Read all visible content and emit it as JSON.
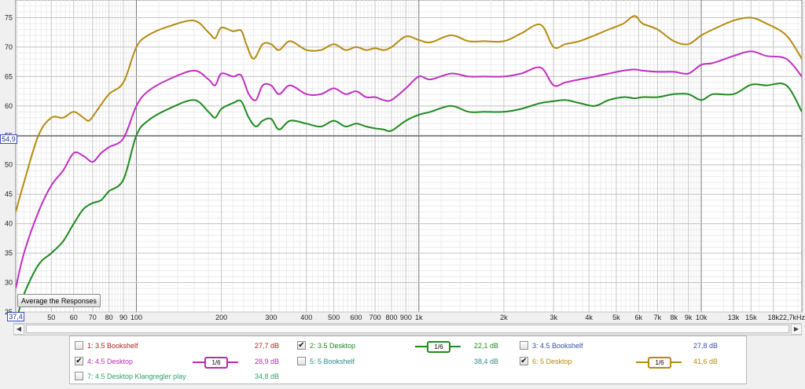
{
  "chart_data": {
    "type": "line",
    "title": "",
    "xlabel": "",
    "ylabel": "",
    "xscale": "log",
    "xlim": [
      37.4,
      22700
    ],
    "ylim": [
      25,
      78
    ],
    "grid": true,
    "y_ticks": [
      "25",
      "30",
      "35",
      "40",
      "45",
      "50",
      "55",
      "60",
      "65",
      "70",
      "75"
    ],
    "x_ticks": [
      {
        "v": 50,
        "t": "50"
      },
      {
        "v": 60,
        "t": "60"
      },
      {
        "v": 70,
        "t": "70"
      },
      {
        "v": 80,
        "t": "80"
      },
      {
        "v": 90,
        "t": "90"
      },
      {
        "v": 100,
        "t": "100"
      },
      {
        "v": 200,
        "t": "200"
      },
      {
        "v": 300,
        "t": "300"
      },
      {
        "v": 400,
        "t": "400"
      },
      {
        "v": 500,
        "t": "500"
      },
      {
        "v": 600,
        "t": "600"
      },
      {
        "v": 700,
        "t": "700"
      },
      {
        "v": 800,
        "t": "800"
      },
      {
        "v": 900,
        "t": "900"
      },
      {
        "v": 1000,
        "t": "1k"
      },
      {
        "v": 2000,
        "t": "2k"
      },
      {
        "v": 3000,
        "t": "3k"
      },
      {
        "v": 4000,
        "t": "4k"
      },
      {
        "v": 5000,
        "t": "5k"
      },
      {
        "v": 6000,
        "t": "6k"
      },
      {
        "v": 7000,
        "t": "7k"
      },
      {
        "v": 8000,
        "t": "8k"
      },
      {
        "v": 9000,
        "t": "9k"
      },
      {
        "v": 10000,
        "t": "10k"
      },
      {
        "v": 13000,
        "t": "13k"
      },
      {
        "v": 15000,
        "t": "15k"
      },
      {
        "v": 18000,
        "t": "18k"
      }
    ],
    "x_start_label": "37,4",
    "x_end_label": "22,7kHz",
    "y_start_label": "",
    "marker_y_value": 54.9,
    "marker_y_label": "54,9",
    "series": [
      {
        "name": "6: 5 Desktop",
        "color": "#b58b10",
        "points": [
          [
            37.4,
            42
          ],
          [
            40,
            47
          ],
          [
            45,
            55
          ],
          [
            50,
            58
          ],
          [
            55,
            58
          ],
          [
            60,
            59
          ],
          [
            65,
            58
          ],
          [
            68,
            57.5
          ],
          [
            72,
            59
          ],
          [
            80,
            62
          ],
          [
            90,
            64
          ],
          [
            100,
            70
          ],
          [
            110,
            72
          ],
          [
            130,
            73.5
          ],
          [
            160,
            74.5
          ],
          [
            180,
            72.5
          ],
          [
            190,
            71.5
          ],
          [
            200,
            73.3
          ],
          [
            220,
            72.7
          ],
          [
            235,
            72.8
          ],
          [
            245,
            70.5
          ],
          [
            260,
            68
          ],
          [
            280,
            70.5
          ],
          [
            300,
            70.5
          ],
          [
            320,
            69.5
          ],
          [
            350,
            71
          ],
          [
            400,
            69.5
          ],
          [
            450,
            69.5
          ],
          [
            500,
            70.5
          ],
          [
            550,
            69.5
          ],
          [
            600,
            70
          ],
          [
            650,
            69.5
          ],
          [
            700,
            69.8
          ],
          [
            750,
            69.5
          ],
          [
            800,
            70
          ],
          [
            900,
            71.8
          ],
          [
            1000,
            71.2
          ],
          [
            1100,
            70.8
          ],
          [
            1300,
            72
          ],
          [
            1500,
            71
          ],
          [
            1700,
            71
          ],
          [
            2000,
            71
          ],
          [
            2300,
            72.3
          ],
          [
            2700,
            73.8
          ],
          [
            3000,
            70
          ],
          [
            3300,
            70.5
          ],
          [
            3700,
            71
          ],
          [
            4200,
            72
          ],
          [
            4700,
            73
          ],
          [
            5300,
            74
          ],
          [
            5800,
            75.3
          ],
          [
            6200,
            74
          ],
          [
            7000,
            73
          ],
          [
            8000,
            71
          ],
          [
            9000,
            70.5
          ],
          [
            10000,
            72
          ],
          [
            11000,
            73
          ],
          [
            13000,
            74.5
          ],
          [
            15000,
            75
          ],
          [
            17000,
            74
          ],
          [
            20000,
            72
          ],
          [
            22700,
            68
          ]
        ]
      },
      {
        "name": "4: 4.5 Desktop",
        "color": "#c02fc0",
        "points": [
          [
            37.4,
            29
          ],
          [
            40,
            35
          ],
          [
            45,
            42
          ],
          [
            50,
            46.5
          ],
          [
            55,
            49
          ],
          [
            60,
            52
          ],
          [
            65,
            51.5
          ],
          [
            70,
            50.5
          ],
          [
            75,
            52
          ],
          [
            80,
            53
          ],
          [
            90,
            54.5
          ],
          [
            100,
            60
          ],
          [
            110,
            62.5
          ],
          [
            130,
            64.5
          ],
          [
            160,
            66
          ],
          [
            180,
            64.5
          ],
          [
            190,
            63.5
          ],
          [
            200,
            65.5
          ],
          [
            220,
            65
          ],
          [
            235,
            65.2
          ],
          [
            250,
            62
          ],
          [
            265,
            61
          ],
          [
            280,
            63.5
          ],
          [
            300,
            63.5
          ],
          [
            320,
            62
          ],
          [
            350,
            63.5
          ],
          [
            400,
            62
          ],
          [
            450,
            62
          ],
          [
            500,
            63
          ],
          [
            550,
            62
          ],
          [
            600,
            62.5
          ],
          [
            650,
            61.5
          ],
          [
            700,
            61.5
          ],
          [
            750,
            61
          ],
          [
            800,
            61
          ],
          [
            900,
            63
          ],
          [
            1000,
            65
          ],
          [
            1100,
            64.5
          ],
          [
            1300,
            65.5
          ],
          [
            1500,
            65
          ],
          [
            1700,
            65
          ],
          [
            2000,
            65
          ],
          [
            2300,
            65.5
          ],
          [
            2700,
            66.5
          ],
          [
            3000,
            63.5
          ],
          [
            3300,
            64
          ],
          [
            3700,
            64.5
          ],
          [
            4200,
            65
          ],
          [
            4700,
            65.5
          ],
          [
            5300,
            66
          ],
          [
            5800,
            66.2
          ],
          [
            6200,
            66
          ],
          [
            7000,
            65.8
          ],
          [
            8000,
            65.8
          ],
          [
            9000,
            65.5
          ],
          [
            10000,
            67
          ],
          [
            11000,
            67.3
          ],
          [
            13000,
            68.5
          ],
          [
            15000,
            69.3
          ],
          [
            17000,
            68.5
          ],
          [
            20000,
            68
          ],
          [
            22700,
            65
          ]
        ]
      },
      {
        "name": "2: 3.5 Desktop",
        "color": "#1f8a1f",
        "points": [
          [
            37.4,
            23
          ],
          [
            40,
            28
          ],
          [
            45,
            33
          ],
          [
            50,
            35
          ],
          [
            55,
            37
          ],
          [
            60,
            40
          ],
          [
            65,
            42.5
          ],
          [
            70,
            43.5
          ],
          [
            75,
            44
          ],
          [
            80,
            45.5
          ],
          [
            90,
            47.5
          ],
          [
            100,
            55
          ],
          [
            110,
            57.5
          ],
          [
            130,
            59.5
          ],
          [
            160,
            61
          ],
          [
            180,
            59
          ],
          [
            190,
            58
          ],
          [
            200,
            59.5
          ],
          [
            220,
            60.5
          ],
          [
            235,
            60.8
          ],
          [
            250,
            58
          ],
          [
            265,
            56.5
          ],
          [
            280,
            57.5
          ],
          [
            300,
            57.8
          ],
          [
            320,
            56
          ],
          [
            350,
            57.5
          ],
          [
            400,
            57
          ],
          [
            450,
            56.5
          ],
          [
            500,
            57.5
          ],
          [
            550,
            56.5
          ],
          [
            600,
            57
          ],
          [
            650,
            56.5
          ],
          [
            700,
            56.2
          ],
          [
            750,
            56
          ],
          [
            800,
            55.8
          ],
          [
            900,
            57.5
          ],
          [
            1000,
            58.5
          ],
          [
            1100,
            59
          ],
          [
            1300,
            60
          ],
          [
            1500,
            59
          ],
          [
            1700,
            59
          ],
          [
            2000,
            59
          ],
          [
            2300,
            59.5
          ],
          [
            2700,
            60.5
          ],
          [
            3000,
            60.8
          ],
          [
            3300,
            61
          ],
          [
            3700,
            60.5
          ],
          [
            4200,
            60
          ],
          [
            4700,
            61
          ],
          [
            5300,
            61.5
          ],
          [
            5800,
            61.3
          ],
          [
            6200,
            61.5
          ],
          [
            7000,
            61.5
          ],
          [
            8000,
            62
          ],
          [
            9000,
            62
          ],
          [
            10000,
            61
          ],
          [
            11000,
            62
          ],
          [
            13000,
            62
          ],
          [
            15000,
            63.6
          ],
          [
            17000,
            63.5
          ],
          [
            20000,
            63.5
          ],
          [
            22700,
            59
          ]
        ]
      }
    ]
  },
  "toolbar": {
    "average_button": "Average the Responses"
  },
  "scrollbar": {
    "left_arrow": "◀",
    "right_arrow": "▶"
  },
  "legend": {
    "items": [
      {
        "id": 1,
        "checked": false,
        "label": "1: 3.5 Bookshelf",
        "value": "27,7 dB",
        "color": "#b22222",
        "smoothing": null
      },
      {
        "id": 2,
        "checked": true,
        "label": "2: 3.5 Desktop",
        "value": "22,1 dB",
        "color": "#1f8a1f",
        "smoothing": "1/6"
      },
      {
        "id": 3,
        "checked": false,
        "label": "3: 4.5 Bookshelf",
        "value": "27,8 dB",
        "color": "#3b4fa8",
        "smoothing": null
      },
      {
        "id": 4,
        "checked": true,
        "label": "4: 4.5 Desktop",
        "value": "28,9 dB",
        "color": "#b32fb3",
        "smoothing": "1/6"
      },
      {
        "id": 5,
        "checked": false,
        "label": "5: 5 Bookshelf",
        "value": "38,4 dB",
        "color": "#2a8a8a",
        "smoothing": null
      },
      {
        "id": 6,
        "checked": true,
        "label": "6: 5 Desktop",
        "value": "41,6 dB",
        "color": "#b58b10",
        "smoothing": "1/6"
      },
      {
        "id": 7,
        "checked": false,
        "label": "7: 4.5 Desktop Klangregler play",
        "value": "34,8 dB",
        "color": "#2e9e6a",
        "smoothing": null
      }
    ]
  }
}
